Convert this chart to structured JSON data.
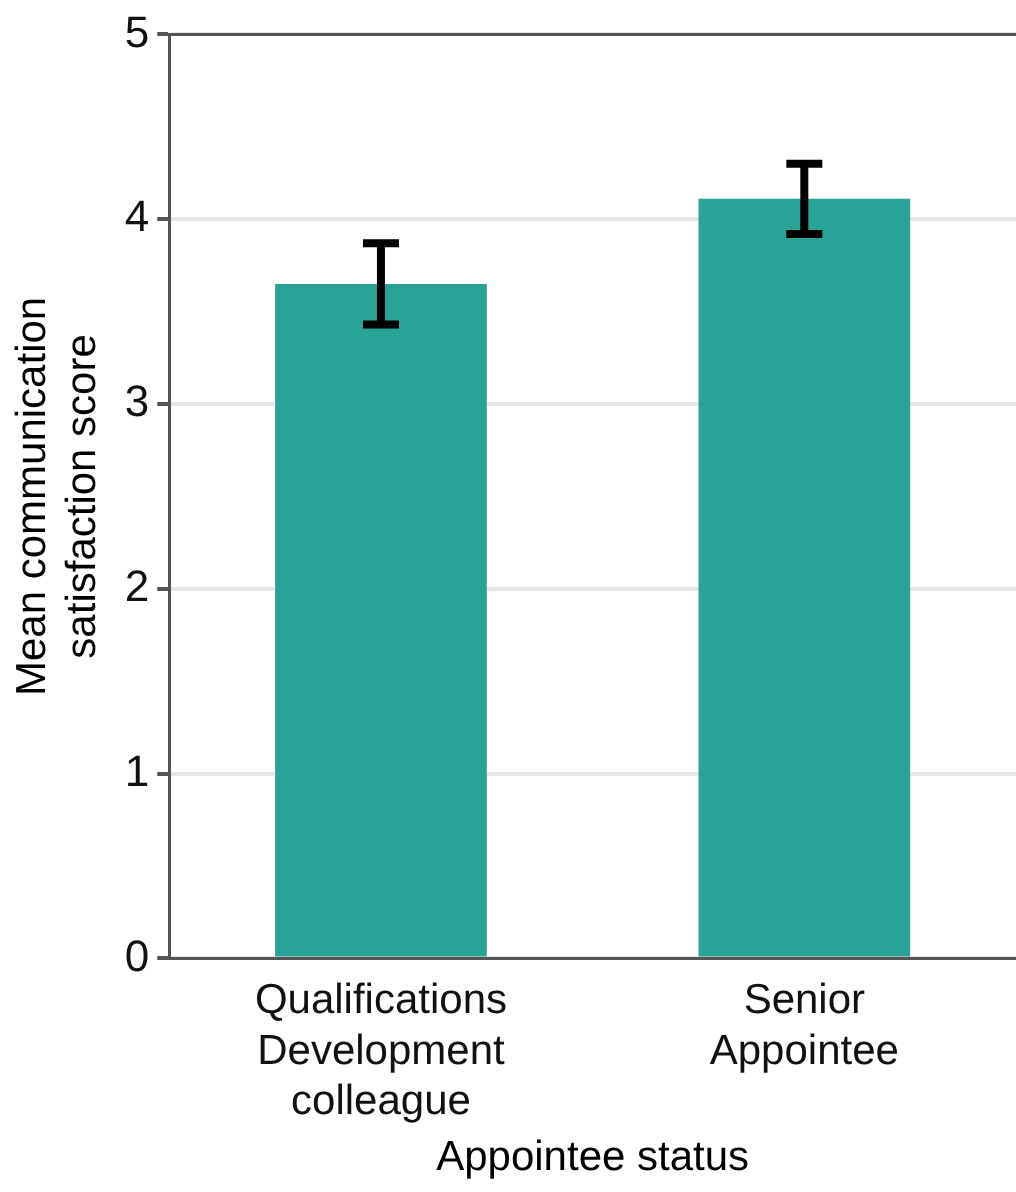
{
  "chart_data": {
    "type": "bar",
    "xlabel": "Appointee status",
    "ylabel": "Mean communication\nsatisfaction score",
    "categories": [
      "Qualifications\nDevelopment\ncolleague",
      "Senior\nAppointee"
    ],
    "values": [
      3.65,
      4.11
    ],
    "color": "#29a396",
    "errors": [
      [
        3.43,
        3.87
      ],
      [
        3.92,
        4.3
      ]
    ],
    "ylim": [
      0,
      5
    ],
    "yticks": [
      0,
      1,
      2,
      3,
      4,
      5
    ],
    "grid": "y",
    "legend": false
  }
}
